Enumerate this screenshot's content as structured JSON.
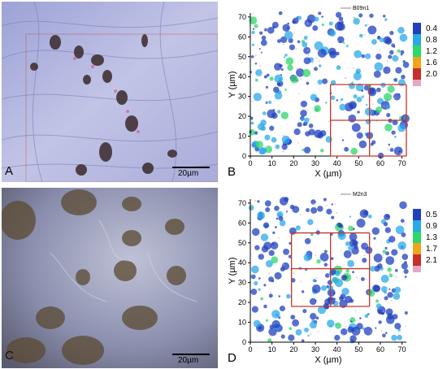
{
  "panels": {
    "A": {
      "letter": "A",
      "scalebar": "20µm"
    },
    "B": {
      "letter": "B",
      "legend_name": "B09n1",
      "colorbar": [
        "0.4",
        "0.8",
        "1.2",
        "1.6",
        "2.0"
      ],
      "colorbar_colors": [
        "#1f3fbf",
        "#29a9e8",
        "#2fd66a",
        "#f0a51c",
        "#c62f2a"
      ]
    },
    "C": {
      "letter": "C",
      "scalebar": "20µm"
    },
    "D": {
      "letter": "D",
      "legend_name": "M2n3",
      "colorbar": [
        "0.5",
        "0.9",
        "1.3",
        "1.7",
        "2.1"
      ],
      "colorbar_colors": [
        "#1f3fbf",
        "#29a9e8",
        "#2fd66a",
        "#f0a51c",
        "#c62f2a"
      ]
    }
  },
  "axes": {
    "xlabel": "X (µm)",
    "ylabel": "Y (µm)",
    "x_ticks": [
      "0",
      "10",
      "20",
      "30",
      "40",
      "50",
      "60",
      "70"
    ],
    "y_ticks": [
      "0",
      "10",
      "20",
      "30",
      "40",
      "50",
      "60",
      "70"
    ],
    "xlim": [
      0,
      72
    ],
    "ylim": [
      0,
      72
    ]
  },
  "grids": {
    "B": {
      "x": [
        37,
        55,
        72
      ],
      "y": [
        0,
        18,
        36
      ]
    },
    "D": {
      "x": [
        19,
        37,
        55
      ],
      "y": [
        18,
        37,
        55
      ]
    }
  },
  "colors": {
    "grid_red": "#c0392b",
    "dark_blue": "#1f3fbf"
  }
}
